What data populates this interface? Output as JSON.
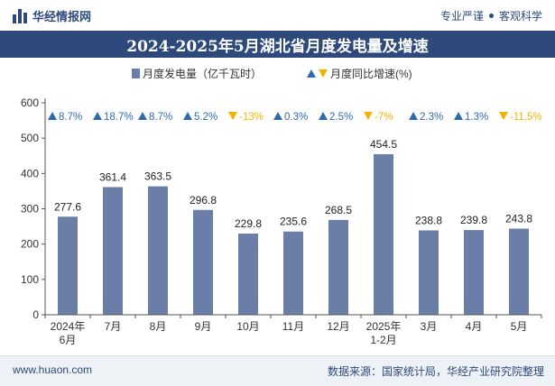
{
  "header": {
    "brand": "华经情报网",
    "slogan_left": "专业严谨",
    "slogan_right": "客观科学"
  },
  "title": "2024-2025年5月湖北省月度发电量及增速",
  "legend": {
    "bar_label": "月度发电量（亿千瓦时）",
    "growth_label": "月度同比增速(%)"
  },
  "footer": {
    "site": "www.huaon.com",
    "source": "数据来源：国家统计局，华经产业研究院整理"
  },
  "colors": {
    "bar": "#6b7ea8",
    "up": "#2e6ab0",
    "down": "#f0b400",
    "brand": "#2e4a7d"
  },
  "chart_data": {
    "type": "bar",
    "categories": [
      [
        "2024年",
        "6月"
      ],
      [
        "7月"
      ],
      [
        "8月"
      ],
      [
        "9月"
      ],
      [
        "10月"
      ],
      [
        "11月"
      ],
      [
        "12月"
      ],
      [
        "2025年",
        "1-2月"
      ],
      [
        "3月"
      ],
      [
        "4月"
      ],
      [
        "5月"
      ]
    ],
    "series": [
      {
        "name": "月度发电量（亿千瓦时）",
        "values": [
          277.6,
          361.4,
          363.5,
          296.8,
          229.8,
          235.6,
          268.5,
          454.5,
          238.8,
          239.8,
          243.8
        ]
      },
      {
        "name": "月度同比增速(%)",
        "values": [
          8.7,
          18.7,
          8.7,
          5.2,
          -13,
          0.3,
          2.5,
          -7,
          2.3,
          1.3,
          -11.5
        ]
      }
    ],
    "value_labels": [
      "277.6",
      "361.4",
      "363.5",
      "296.8",
      "229.8",
      "235.6",
      "268.5",
      "454.5",
      "238.8",
      "239.8",
      "243.8"
    ],
    "growth_labels": [
      "8.7%",
      "18.7%",
      "8.7%",
      "5.2%",
      "-13%",
      "0.3%",
      "2.5%",
      "-7%",
      "2.3%",
      "1.3%",
      "-11.5%"
    ],
    "yticks": [
      "0",
      "100",
      "200",
      "300",
      "400",
      "500",
      "600"
    ],
    "ylim": [
      0,
      600
    ],
    "grid": false,
    "legend_position": "top-center"
  }
}
